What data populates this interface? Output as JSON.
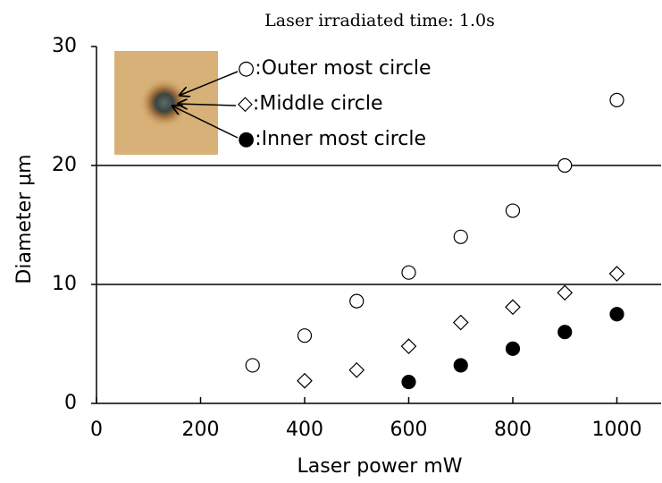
{
  "chart_data": {
    "type": "scatter",
    "title": "Laser irradiated time: 1.0s",
    "xlabel": "Laser power  mW",
    "ylabel": "Diameter  μm",
    "xlim": [
      0,
      1085
    ],
    "xticks": [
      0,
      200,
      400,
      600,
      800,
      1000
    ],
    "ylim": [
      0,
      30
    ],
    "yticks": [
      0,
      10,
      20,
      30
    ],
    "grid": true,
    "series": [
      {
        "name": "○:Outer most circle",
        "marker": "circle",
        "filled": false,
        "color": "#000000",
        "x": [
          300,
          400,
          500,
          600,
          700,
          800,
          900,
          1000
        ],
        "values": [
          3.2,
          5.7,
          8.6,
          11.0,
          14.0,
          16.2,
          20.0,
          25.5
        ]
      },
      {
        "name": "◇:Middle circle",
        "marker": "diamond",
        "filled": false,
        "color": "#000000",
        "x": [
          400,
          500,
          600,
          700,
          800,
          900,
          1000
        ],
        "values": [
          1.9,
          2.8,
          4.8,
          6.8,
          8.1,
          9.3,
          10.9
        ]
      },
      {
        "name": "●:Inner most circle",
        "marker": "circle",
        "filled": true,
        "color": "#000000",
        "x": [
          600,
          700,
          800,
          900,
          1000
        ],
        "values": [
          1.8,
          3.2,
          4.6,
          6.0,
          7.5
        ]
      }
    ]
  }
}
